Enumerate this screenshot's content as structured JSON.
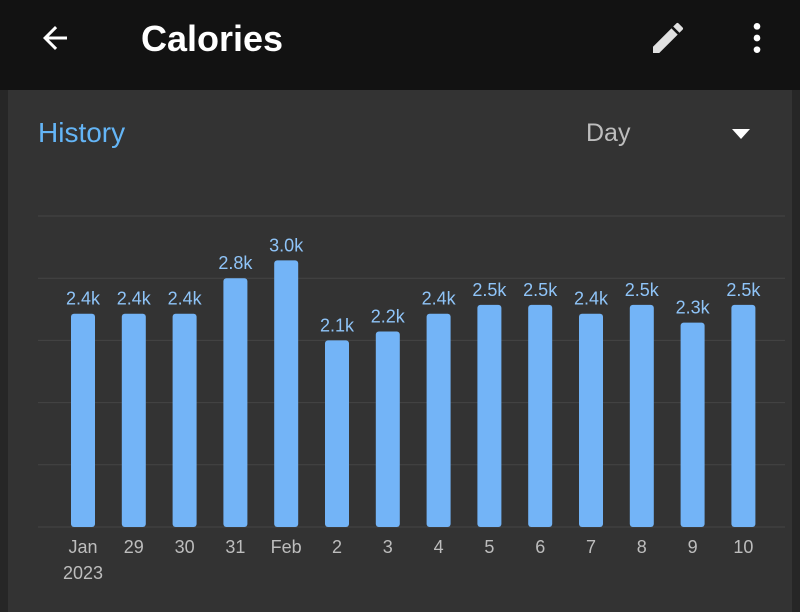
{
  "header": {
    "title": "Calories",
    "back_icon": "arrow-back-icon",
    "edit_icon": "pencil-icon",
    "more_icon": "more-vert-icon"
  },
  "card": {
    "section_label": "History",
    "period_select": {
      "value": "Day",
      "icon": "dropdown-triangle-icon"
    }
  },
  "colors": {
    "bar": "#73b4f7",
    "accent": "#64b5f6",
    "label": "#8fc4f8",
    "grid": "#444444",
    "tick": "#bdbdbd"
  },
  "chart_data": {
    "type": "bar",
    "categories": [
      "Jan\n2023",
      "29",
      "30",
      "31",
      "Feb",
      "2",
      "3",
      "4",
      "5",
      "6",
      "7",
      "8",
      "9",
      "10"
    ],
    "values": [
      2400,
      2400,
      2400,
      2800,
      3000,
      2100,
      2200,
      2400,
      2500,
      2500,
      2400,
      2500,
      2300,
      2500
    ],
    "data_labels": [
      "2.4k",
      "2.4k",
      "2.4k",
      "2.8k",
      "3.0k",
      "2.1k",
      "2.2k",
      "2.4k",
      "2.5k",
      "2.5k",
      "2.4k",
      "2.5k",
      "2.3k",
      "2.5k"
    ],
    "ylim": [
      0,
      3500
    ],
    "grid": true
  }
}
